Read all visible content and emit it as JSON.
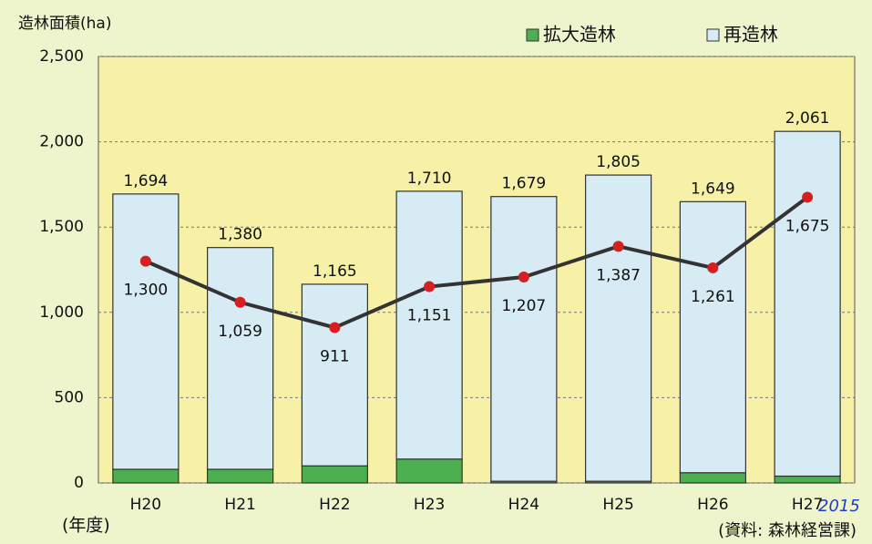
{
  "chart_data": {
    "type": "stacked-bar-line",
    "y_axis_title": "造林面積(ha)",
    "x_axis_title": "(年度)",
    "source": "(資料: 森林経営課)",
    "annotation": "2015",
    "categories": [
      "H20",
      "H21",
      "H22",
      "H23",
      "H24",
      "H25",
      "H26",
      "H27"
    ],
    "series": [
      {
        "name": "拡大造林",
        "color": "#4caf50",
        "values": [
          80,
          80,
          100,
          140,
          10,
          10,
          60,
          40
        ]
      },
      {
        "name": "再造林",
        "color": "#d6ebf4",
        "values": [
          1614,
          1300,
          1065,
          1570,
          1669,
          1795,
          1589,
          2021
        ]
      }
    ],
    "total_labels": [
      "1,694",
      "1,380",
      "1,165",
      "1,710",
      "1,679",
      "1,805",
      "1,649",
      "2,061"
    ],
    "line": {
      "color": "#333333",
      "marker_color": "#d42020",
      "values": [
        1300,
        1059,
        911,
        1151,
        1207,
        1387,
        1261,
        1675
      ],
      "value_labels": [
        "1,300",
        "1,059",
        "911",
        "1,151",
        "1,207",
        "1,387",
        "1,261",
        "1,675"
      ]
    },
    "ylim": [
      0,
      2500
    ],
    "yticks": [
      0,
      500,
      {
        "value": 1000,
        "label": "1,000"
      },
      {
        "value": 1500,
        "label": "1,500"
      },
      {
        "value": 2000,
        "label": "2,000"
      },
      {
        "value": 2500,
        "label": "2,500"
      }
    ],
    "grid": true,
    "plot_background": "#f6f1a6"
  }
}
